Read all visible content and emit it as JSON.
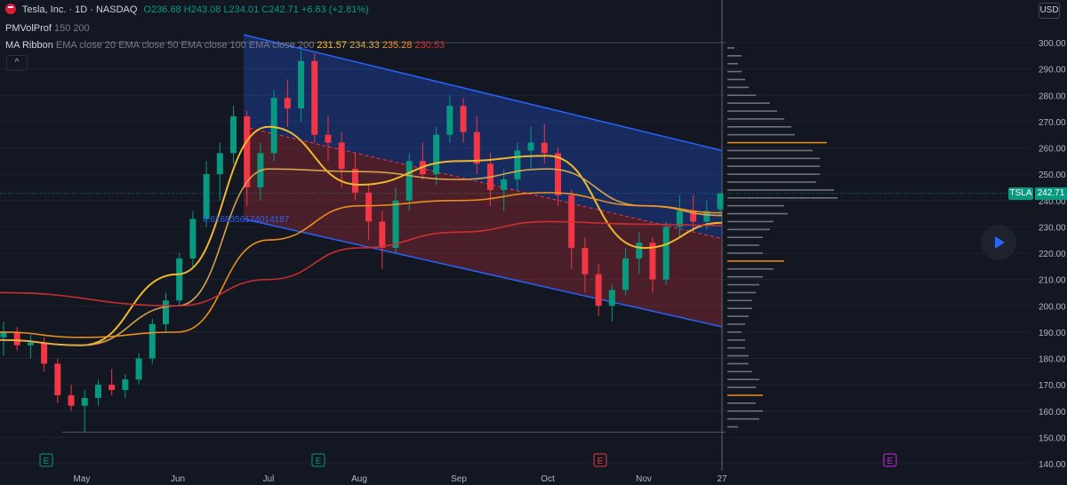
{
  "header": {
    "symbol_title": "Tesla, Inc. · 1D · NASDAQ",
    "open": "O236.68",
    "high": "H243.08",
    "low": "L234.01",
    "close": "C242.71",
    "change": "+6.63 (+2.81%)"
  },
  "indicators": {
    "pmvolprof_name": "PMVolProf",
    "pmvolprof_params": "150 200",
    "ma_name": "MA Ribbon",
    "ma_params": "EMA close 20 EMA close 50 EMA close 100 EMA close 200",
    "ma_values": [
      "231.57",
      "234.33",
      "235.28",
      "230.53"
    ]
  },
  "currency_label": "USD",
  "price_axis": {
    "ticks": [
      "300.00",
      "290.00",
      "280.00",
      "270.00",
      "260.00",
      "250.00",
      "240.00",
      "230.00",
      "220.00",
      "210.00",
      "200.00",
      "190.00",
      "180.00",
      "170.00",
      "160.00",
      "150.00",
      "140.00"
    ]
  },
  "last_price": {
    "symbol": "TSLA",
    "value": "242.71"
  },
  "fib_label": "0.6168356174014187",
  "event_markers": [
    {
      "letter": "E",
      "color": "#089981"
    },
    {
      "letter": "E",
      "color": "#089981"
    },
    {
      "letter": "E",
      "color": "#f23645"
    },
    {
      "letter": "E",
      "color": "#c72de0"
    }
  ],
  "colors": {
    "up": "#089981",
    "down": "#f23645",
    "ema20": "#fbc02d",
    "ema50": "#dda94e",
    "ema100": "#f7931a",
    "ema200": "#d32f2f",
    "channel": "#2962ff"
  },
  "chart_data": {
    "type": "line",
    "x_labels": [
      "May",
      "Jun",
      "Jul",
      "Aug",
      "Sep",
      "Oct",
      "Nov",
      "27"
    ],
    "ylim": [
      140,
      300
    ],
    "series": [
      {
        "name": "EMA close 20",
        "values": [
          {
            "x": "May",
            "y": 185
          },
          {
            "x": "Jun",
            "y": 212
          },
          {
            "x": "Jul",
            "y": 268
          },
          {
            "x": "Aug",
            "y": 246
          },
          {
            "x": "Sep",
            "y": 255
          },
          {
            "x": "Oct",
            "y": 257
          },
          {
            "x": "Nov",
            "y": 222
          },
          {
            "x": "27",
            "y": 231.57
          }
        ]
      },
      {
        "name": "EMA close 50",
        "values": [
          {
            "x": "May",
            "y": 185
          },
          {
            "x": "Jun",
            "y": 200
          },
          {
            "x": "Jul",
            "y": 252
          },
          {
            "x": "Aug",
            "y": 251
          },
          {
            "x": "Sep",
            "y": 248
          },
          {
            "x": "Oct",
            "y": 252
          },
          {
            "x": "Nov",
            "y": 238
          },
          {
            "x": "27",
            "y": 234.33
          }
        ]
      },
      {
        "name": "EMA close 100",
        "values": [
          {
            "x": "May",
            "y": 188
          },
          {
            "x": "Jun",
            "y": 190
          },
          {
            "x": "Jul",
            "y": 225
          },
          {
            "x": "Aug",
            "y": 238
          },
          {
            "x": "Sep",
            "y": 240
          },
          {
            "x": "Oct",
            "y": 243
          },
          {
            "x": "Nov",
            "y": 238
          },
          {
            "x": "27",
            "y": 235.28
          }
        ]
      },
      {
        "name": "EMA close 200",
        "values": [
          {
            "x": "May",
            "y": 205
          },
          {
            "x": "Jun",
            "y": 200
          },
          {
            "x": "Jul",
            "y": 210
          },
          {
            "x": "Aug",
            "y": 222
          },
          {
            "x": "Sep",
            "y": 228
          },
          {
            "x": "Oct",
            "y": 232
          },
          {
            "x": "Nov",
            "y": 231
          },
          {
            "x": "27",
            "y": 230.53
          }
        ]
      }
    ],
    "candles": [
      {
        "o": 188,
        "h": 194,
        "l": 181,
        "c": 190
      },
      {
        "o": 190,
        "h": 192,
        "l": 183,
        "c": 185
      },
      {
        "o": 185,
        "h": 189,
        "l": 180,
        "c": 186
      },
      {
        "o": 186,
        "h": 188,
        "l": 175,
        "c": 178
      },
      {
        "o": 178,
        "h": 180,
        "l": 163,
        "c": 166
      },
      {
        "o": 166,
        "h": 170,
        "l": 160,
        "c": 162
      },
      {
        "o": 162,
        "h": 168,
        "l": 152,
        "c": 165
      },
      {
        "o": 165,
        "h": 172,
        "l": 162,
        "c": 170
      },
      {
        "o": 170,
        "h": 176,
        "l": 166,
        "c": 168
      },
      {
        "o": 168,
        "h": 174,
        "l": 165,
        "c": 172
      },
      {
        "o": 172,
        "h": 182,
        "l": 170,
        "c": 180
      },
      {
        "o": 180,
        "h": 195,
        "l": 178,
        "c": 193
      },
      {
        "o": 193,
        "h": 205,
        "l": 190,
        "c": 202
      },
      {
        "o": 202,
        "h": 220,
        "l": 200,
        "c": 218
      },
      {
        "o": 218,
        "h": 236,
        "l": 215,
        "c": 233
      },
      {
        "o": 233,
        "h": 255,
        "l": 230,
        "c": 250
      },
      {
        "o": 250,
        "h": 262,
        "l": 240,
        "c": 258
      },
      {
        "o": 258,
        "h": 276,
        "l": 254,
        "c": 272
      },
      {
        "o": 272,
        "h": 274,
        "l": 238,
        "c": 245
      },
      {
        "o": 245,
        "h": 262,
        "l": 240,
        "c": 258
      },
      {
        "o": 258,
        "h": 282,
        "l": 255,
        "c": 279
      },
      {
        "o": 279,
        "h": 286,
        "l": 268,
        "c": 275
      },
      {
        "o": 275,
        "h": 297,
        "l": 270,
        "c": 293
      },
      {
        "o": 293,
        "h": 296,
        "l": 262,
        "c": 265
      },
      {
        "o": 265,
        "h": 272,
        "l": 255,
        "c": 262
      },
      {
        "o": 262,
        "h": 266,
        "l": 245,
        "c": 252
      },
      {
        "o": 252,
        "h": 258,
        "l": 240,
        "c": 243
      },
      {
        "o": 243,
        "h": 246,
        "l": 225,
        "c": 232
      },
      {
        "o": 232,
        "h": 236,
        "l": 214,
        "c": 222
      },
      {
        "o": 222,
        "h": 245,
        "l": 220,
        "c": 240
      },
      {
        "o": 240,
        "h": 258,
        "l": 236,
        "c": 255
      },
      {
        "o": 255,
        "h": 262,
        "l": 248,
        "c": 250
      },
      {
        "o": 250,
        "h": 268,
        "l": 246,
        "c": 265
      },
      {
        "o": 265,
        "h": 280,
        "l": 262,
        "c": 276
      },
      {
        "o": 276,
        "h": 279,
        "l": 262,
        "c": 266
      },
      {
        "o": 266,
        "h": 272,
        "l": 250,
        "c": 254
      },
      {
        "o": 254,
        "h": 258,
        "l": 238,
        "c": 244
      },
      {
        "o": 244,
        "h": 252,
        "l": 236,
        "c": 248
      },
      {
        "o": 248,
        "h": 262,
        "l": 244,
        "c": 259
      },
      {
        "o": 259,
        "h": 268,
        "l": 252,
        "c": 262
      },
      {
        "o": 262,
        "h": 269,
        "l": 254,
        "c": 258
      },
      {
        "o": 258,
        "h": 260,
        "l": 238,
        "c": 242
      },
      {
        "o": 242,
        "h": 244,
        "l": 214,
        "c": 222
      },
      {
        "o": 222,
        "h": 226,
        "l": 205,
        "c": 212
      },
      {
        "o": 212,
        "h": 216,
        "l": 196,
        "c": 200
      },
      {
        "o": 200,
        "h": 208,
        "l": 194,
        "c": 206
      },
      {
        "o": 206,
        "h": 222,
        "l": 204,
        "c": 218
      },
      {
        "o": 218,
        "h": 228,
        "l": 212,
        "c": 224
      },
      {
        "o": 224,
        "h": 226,
        "l": 205,
        "c": 210
      },
      {
        "o": 210,
        "h": 232,
        "l": 208,
        "c": 230
      },
      {
        "o": 230,
        "h": 242,
        "l": 226,
        "c": 236
      },
      {
        "o": 236,
        "h": 242,
        "l": 228,
        "c": 232
      },
      {
        "o": 232,
        "h": 240,
        "l": 229,
        "c": 236
      },
      {
        "o": 236.68,
        "h": 243.08,
        "l": 234.01,
        "c": 242.71
      }
    ],
    "volume_profile": {
      "price_levels": [
        298,
        295,
        292,
        289,
        286,
        283,
        280,
        277,
        274,
        271,
        268,
        265,
        262,
        259,
        256,
        253,
        250,
        247,
        244,
        241,
        238,
        235,
        232,
        229,
        226,
        223,
        220,
        217,
        214,
        211,
        208,
        205,
        202,
        199,
        196,
        193,
        190,
        187,
        184,
        181,
        178,
        175,
        172,
        169,
        166,
        163,
        160,
        157,
        154
      ],
      "volumes": [
        2,
        4,
        3,
        4,
        5,
        6,
        8,
        12,
        14,
        16,
        18,
        19,
        28,
        24,
        26,
        26,
        26,
        25,
        30,
        31,
        16,
        17,
        13,
        12,
        10,
        9,
        10,
        16,
        13,
        10,
        9,
        8,
        7,
        7,
        6,
        5,
        4,
        5,
        5,
        6,
        6,
        7,
        9,
        8,
        10,
        8,
        10,
        9,
        3
      ],
      "highlighted": [
        262,
        217,
        166
      ]
    },
    "channel": {
      "upper": [
        {
          "x": "Jul",
          "y": 303
        },
        {
          "x": "27",
          "y": 259
        }
      ],
      "lower": [
        {
          "x": "Jul",
          "y": 233
        },
        {
          "x": "27",
          "y": 192
        }
      ]
    }
  }
}
